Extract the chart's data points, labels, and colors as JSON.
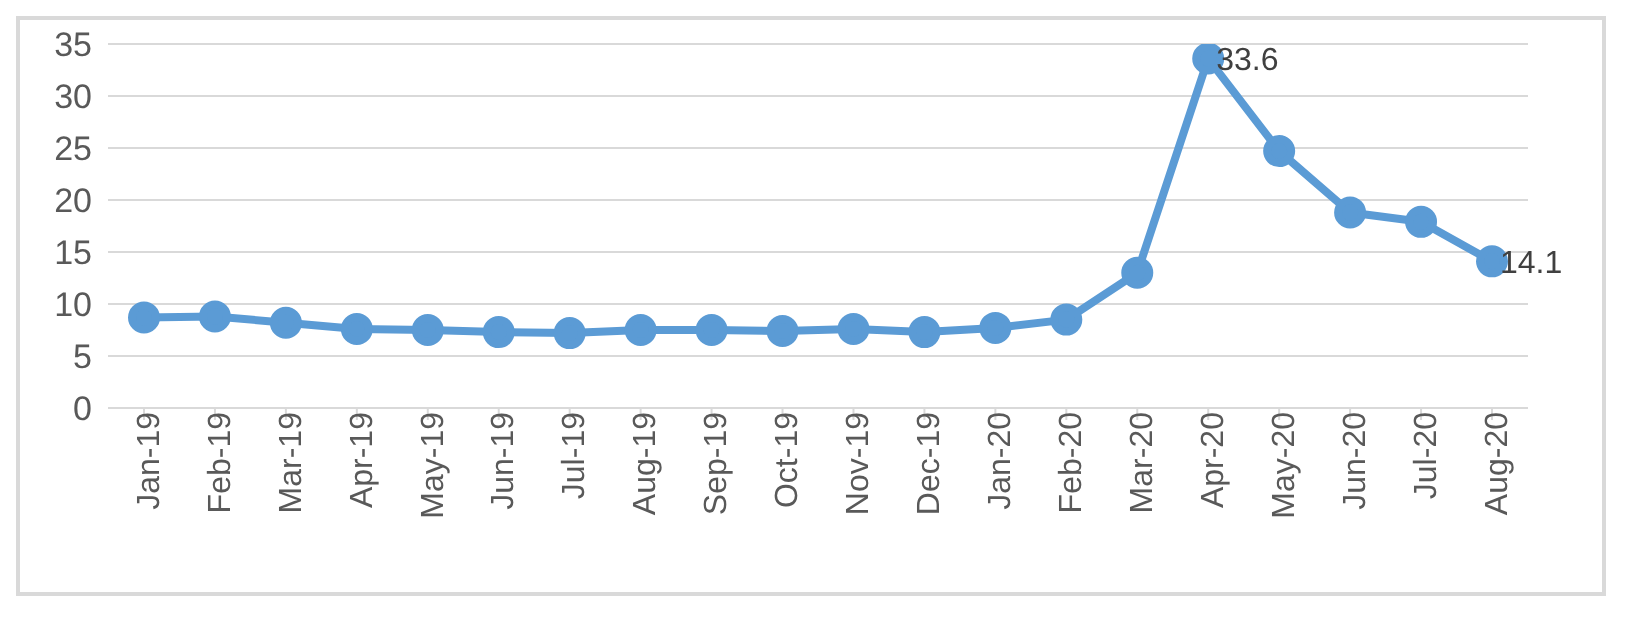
{
  "chart_data": {
    "type": "line",
    "categories": [
      "Jan-19",
      "Feb-19",
      "Mar-19",
      "Apr-19",
      "May-19",
      "Jun-19",
      "Jul-19",
      "Aug-19",
      "Sep-19",
      "Oct-19",
      "Nov-19",
      "Dec-19",
      "Jan-20",
      "Feb-20",
      "Mar-20",
      "Apr-20",
      "May-20",
      "Jun-20",
      "Jul-20",
      "Aug-20"
    ],
    "series": [
      {
        "color": "#5b9bd5",
        "values": [
          8.7,
          8.8,
          8.2,
          7.6,
          7.5,
          7.3,
          7.2,
          7.5,
          7.5,
          7.4,
          7.6,
          7.3,
          7.7,
          8.5,
          13,
          33.6,
          24.7,
          18.8,
          17.9,
          14.1
        ],
        "value_labels": [
          null,
          null,
          null,
          null,
          null,
          null,
          null,
          null,
          null,
          null,
          null,
          null,
          null,
          null,
          null,
          "33.6",
          null,
          null,
          null,
          "14.1"
        ]
      }
    ],
    "ylim": [
      0,
      35
    ],
    "yticks": [
      0,
      5,
      10,
      15,
      20,
      25,
      30,
      35
    ],
    "grid": "y",
    "marker": "circle",
    "line_style": "solid",
    "legend": false
  }
}
